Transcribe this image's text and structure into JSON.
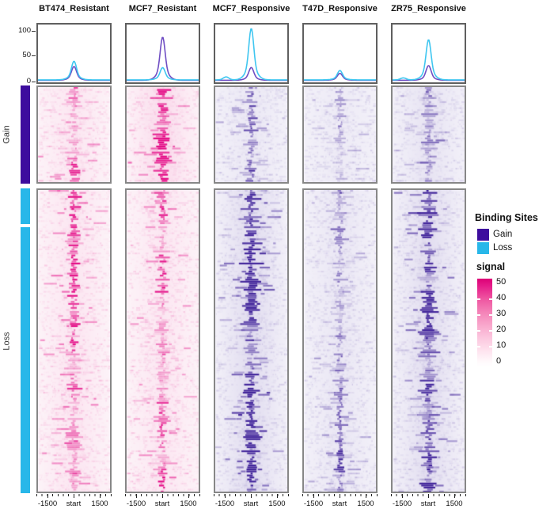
{
  "chart_data": {
    "type": "heatmap",
    "description": "Enriched heatmap figure: five sample columns, each with a meta-profile line plot (Gain vs Loss binding sites) above signal heatmaps centered on binding-site start; rows split into Gain and Loss groups.",
    "panels": [
      {
        "name": "BT474_Resistant",
        "colormap": "pink",
        "profile": {
          "loss_peak": 38,
          "gain_peak": 28,
          "side_bump": 0
        },
        "heatmap": {
          "gain_intensity": 0.55,
          "loss_intensity": 0.6
        },
        "seed": 101
      },
      {
        "name": "MCF7_Resistant",
        "colormap": "pink",
        "profile": {
          "loss_peak": 25,
          "gain_peak": 88,
          "side_bump": 0
        },
        "heatmap": {
          "gain_intensity": 1.0,
          "loss_intensity": 0.55
        },
        "seed": 202
      },
      {
        "name": "MCF7_Responsive",
        "colormap": "purple",
        "profile": {
          "loss_peak": 105,
          "gain_peak": 26,
          "side_bump": 6
        },
        "heatmap": {
          "gain_intensity": 0.45,
          "loss_intensity": 1.0
        },
        "seed": 303
      },
      {
        "name": "T47D_Responsive",
        "colormap": "purple",
        "profile": {
          "loss_peak": 19,
          "gain_peak": 14,
          "side_bump": 0
        },
        "heatmap": {
          "gain_intensity": 0.3,
          "loss_intensity": 0.5
        },
        "seed": 404
      },
      {
        "name": "ZR75_Responsive",
        "colormap": "purple",
        "profile": {
          "loss_peak": 82,
          "gain_peak": 30,
          "side_bump": 4
        },
        "heatmap": {
          "gain_intensity": 0.65,
          "loss_intensity": 0.95
        },
        "seed": 505
      }
    ],
    "profile_axis": {
      "ticks": [
        "100",
        "50",
        "0"
      ],
      "ylim": [
        0,
        115
      ]
    },
    "x_axis": {
      "labels": [
        "-1500",
        "start",
        "1500"
      ]
    },
    "row_groups": [
      {
        "label": "Gain",
        "color": "#3d0d9e"
      },
      {
        "label": "Loss",
        "color": "#28b7e9"
      }
    ],
    "legend": {
      "title": "Binding Sites",
      "items": [
        {
          "label": "Gain",
          "color": "#3d0d9e"
        },
        {
          "label": "Loss",
          "color": "#28b7e9"
        }
      ]
    },
    "signal_legend": {
      "title": "signal",
      "ticks": [
        "50",
        "40",
        "30",
        "20",
        "10",
        "0"
      ],
      "max_color": "#dc0076",
      "min_color": "#ffffff"
    },
    "colors": {
      "profile_loss_line": "#3fc6f0",
      "profile_gain_line": "#6f4ec3",
      "pink": {
        "bg": "#fdf3f8",
        "strong": "#e40b86"
      },
      "purple": {
        "bg": "#f3f1f9",
        "strong": "#42259b"
      }
    }
  }
}
